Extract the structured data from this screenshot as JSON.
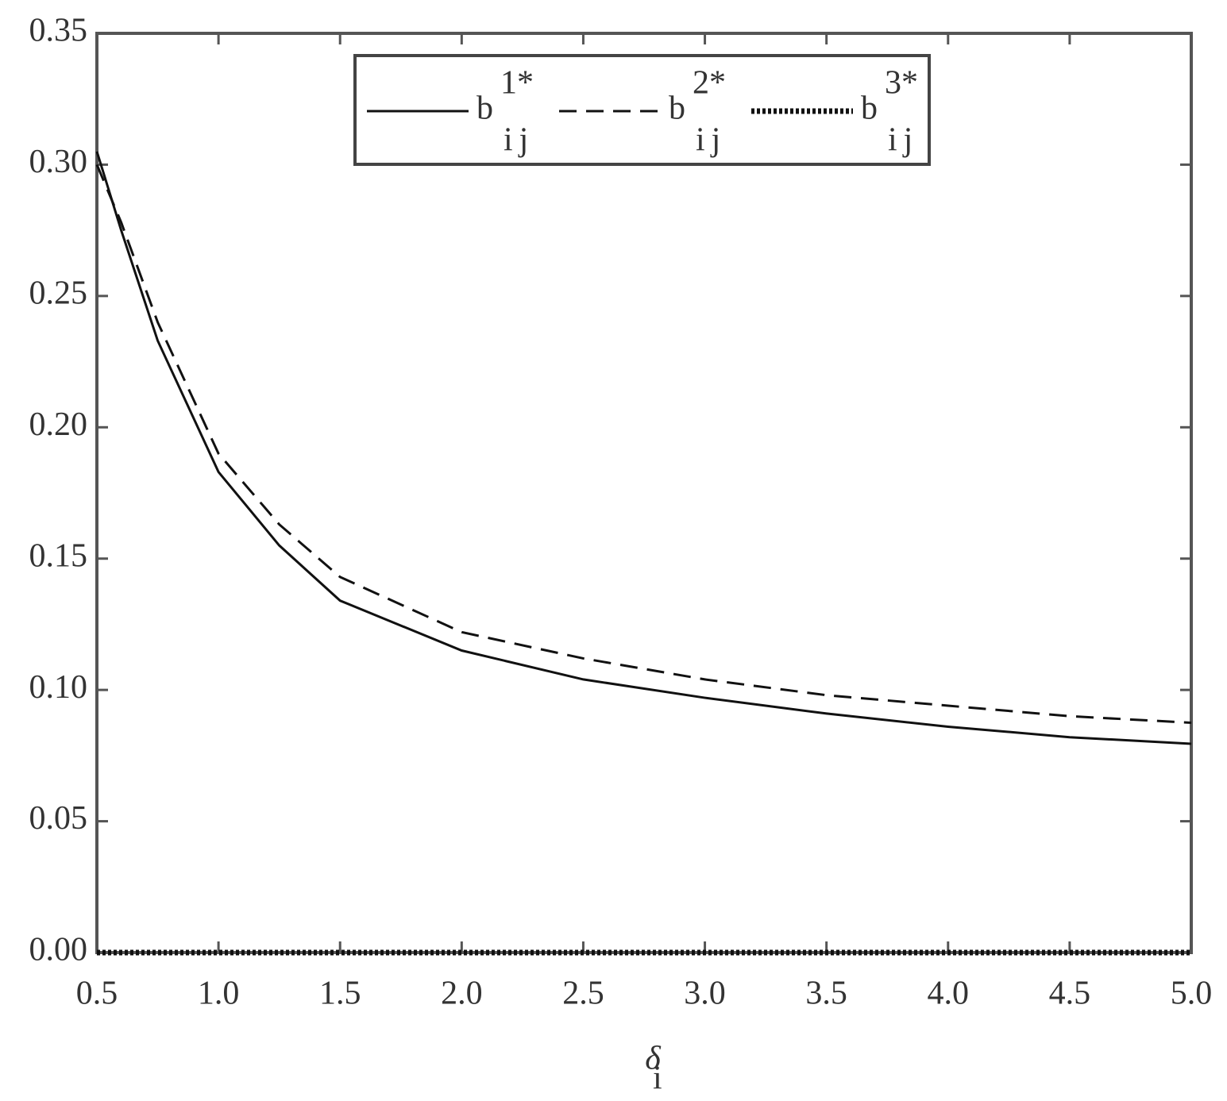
{
  "chart_data": {
    "type": "line",
    "x": [
      0.5,
      0.6,
      0.75,
      1.0,
      1.25,
      1.5,
      2.0,
      2.5,
      3.0,
      3.5,
      4.0,
      4.5,
      5.0
    ],
    "series": [
      {
        "name": "b",
        "superscript": "1*",
        "subscript": "ij",
        "color": "#111111",
        "dash": "solid",
        "values": [
          0.305,
          0.275,
          0.233,
          0.183,
          0.155,
          0.134,
          0.115,
          0.104,
          0.097,
          0.091,
          0.086,
          0.082,
          0.0795
        ]
      },
      {
        "name": "b",
        "superscript": "2*",
        "subscript": "ij",
        "color": "#111111",
        "dash": "dashed",
        "values": [
          0.3,
          0.278,
          0.24,
          0.19,
          0.163,
          0.143,
          0.122,
          0.112,
          0.104,
          0.098,
          0.094,
          0.09,
          0.0875
        ]
      },
      {
        "name": "b",
        "superscript": "3*",
        "subscript": "ij",
        "color": "#111111",
        "dash": "dotted",
        "values": [
          0,
          0,
          0,
          0,
          0,
          0,
          0,
          0,
          0,
          0,
          0,
          0,
          0
        ]
      }
    ],
    "xlabel": "δ",
    "xlabel_subscript": "i",
    "xlim": [
      0.5,
      5.0
    ],
    "xticks": [
      {
        "value": 0.5,
        "label": "0.5"
      },
      {
        "value": 1.0,
        "label": "1.0"
      },
      {
        "value": 1.5,
        "label": "1.5"
      },
      {
        "value": 2.0,
        "label": "2.0"
      },
      {
        "value": 2.5,
        "label": "2.5"
      },
      {
        "value": 3.0,
        "label": "3.0"
      },
      {
        "value": 3.5,
        "label": "3.5"
      },
      {
        "value": 4.0,
        "label": "4.0"
      },
      {
        "value": 4.5,
        "label": "4.5"
      },
      {
        "value": 5.0,
        "label": "5.0"
      }
    ],
    "ylim": [
      0,
      0.35
    ],
    "yticks": [
      {
        "value": 0,
        "label": "0.00"
      },
      0.05,
      {
        "value": 0.1,
        "label": "0.10"
      },
      0.15,
      {
        "value": 0.2,
        "label": "0.20"
      },
      0.25,
      {
        "value": 0.3,
        "label": "0.30"
      },
      0.35
    ],
    "legend": "upper center",
    "grid": false
  }
}
